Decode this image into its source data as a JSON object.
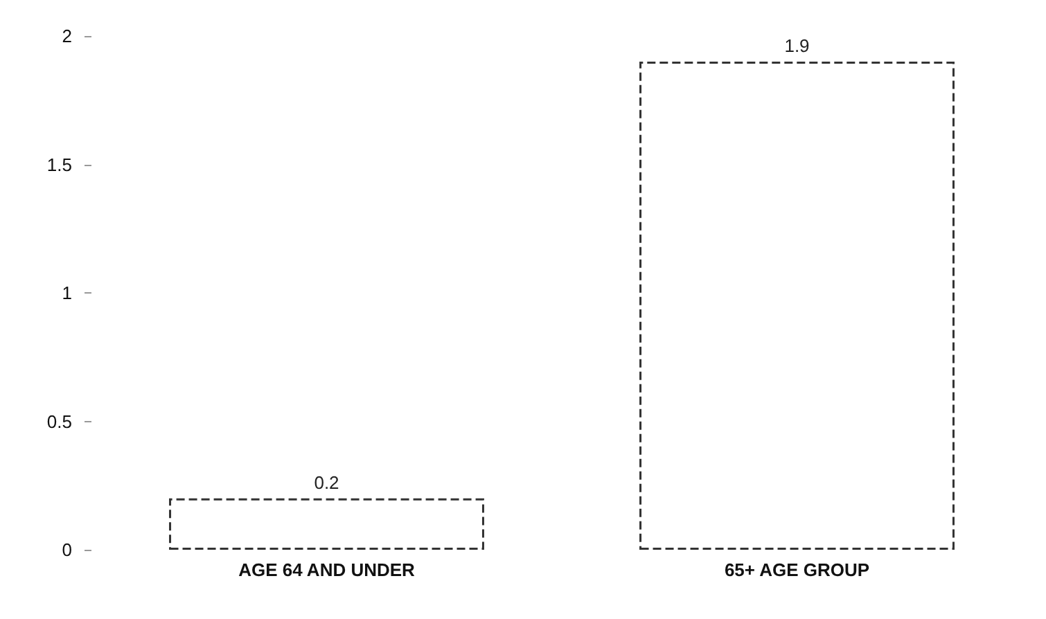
{
  "chart_data": {
    "type": "bar",
    "categories": [
      "AGE 64 AND UNDER",
      "65+ AGE GROUP"
    ],
    "values": [
      0.2,
      1.9
    ],
    "color": "#ffffff",
    "ylim": [
      0,
      2
    ],
    "yticks": [
      0,
      0.5,
      1,
      1.5,
      2
    ],
    "data_labels": true,
    "grid": false
  }
}
